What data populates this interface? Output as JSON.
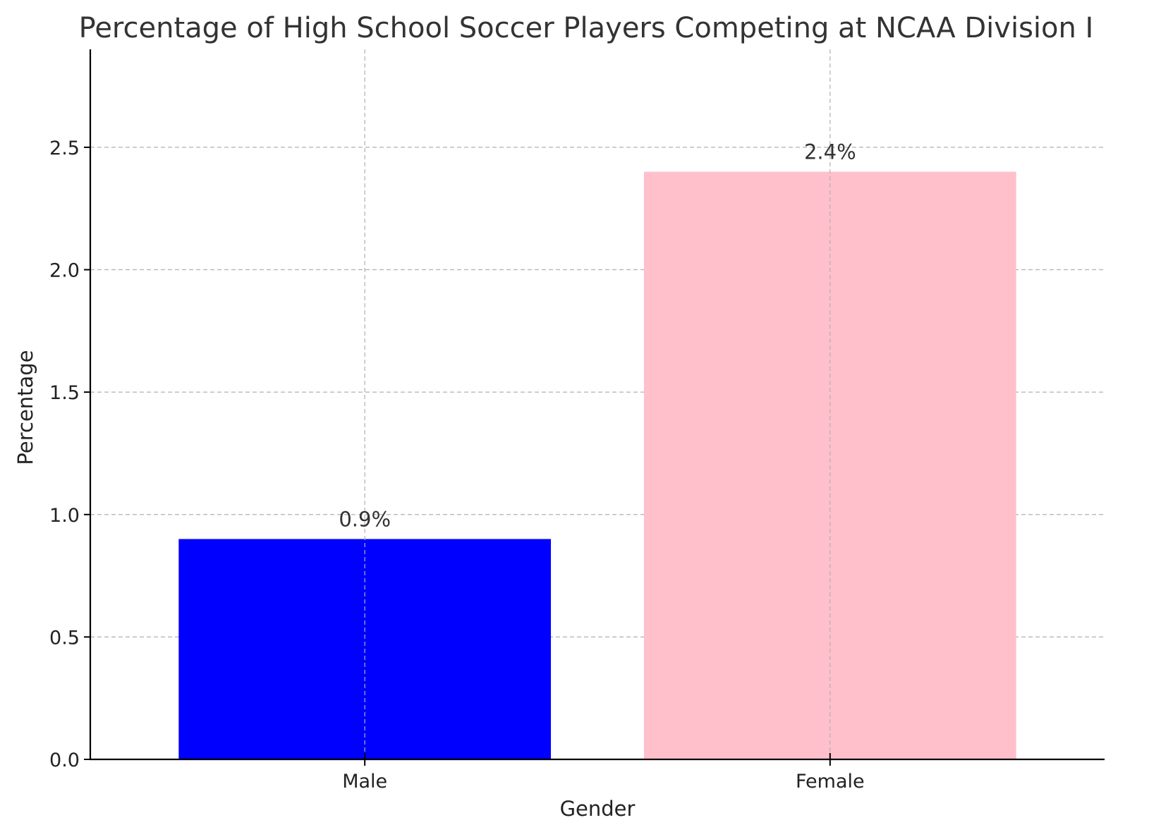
{
  "chart_data": {
    "type": "bar",
    "title": "Percentage of High School Soccer Players Competing at NCAA Division I",
    "xlabel": "Gender",
    "ylabel": "Percentage",
    "categories": [
      "Male",
      "Female"
    ],
    "values": [
      0.9,
      2.4
    ],
    "data_labels": [
      "0.9%",
      "2.4%"
    ],
    "colors": [
      "#0000ff",
      "#ffc0cb"
    ],
    "ylim": [
      0,
      2.9
    ],
    "yticks": [
      0.0,
      0.5,
      1.0,
      1.5,
      2.0,
      2.5
    ],
    "ytick_labels": [
      "0.0",
      "0.5",
      "1.0",
      "1.5",
      "2.0",
      "2.5"
    ],
    "grid": true,
    "legend": "none"
  }
}
